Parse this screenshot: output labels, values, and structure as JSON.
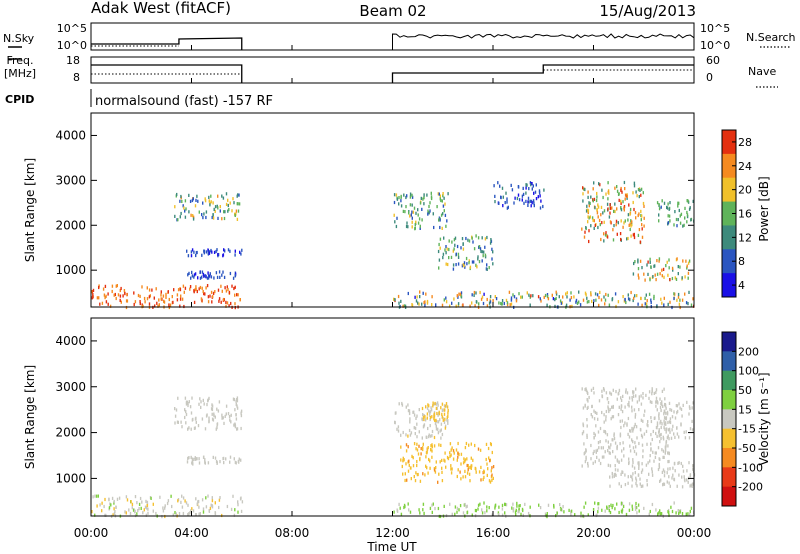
{
  "header": {
    "station": "Adak West (fitACF)",
    "beam": "Beam 02",
    "date": "15/Aug/2013"
  },
  "top_panels": {
    "nsky_label": "N.Sky",
    "nsearch_label": "N.Search",
    "freq_label_line1": "Freq.",
    "freq_label_line2": "[MHz]",
    "nave_label": "Nave",
    "cpid_label": "CPID",
    "cpid_text": "normalsound (fast) -157 RF",
    "noise_ticks_left": [
      "10^5",
      "10^0"
    ],
    "noise_ticks_right": [
      "10^5",
      "10^0"
    ],
    "freq_ticks": [
      "18",
      "8"
    ],
    "nave_ticks": [
      "60",
      "0"
    ]
  },
  "power_colorbar": {
    "label": "Power [dB]",
    "ticks": [
      "28",
      "24",
      "20",
      "16",
      "12",
      "8",
      "4"
    ],
    "colors": [
      "#1a10e6",
      "#2a55c0",
      "#3d8a7c",
      "#5fb35a",
      "#f0c02a",
      "#f58a20",
      "#e43010"
    ]
  },
  "velocity_colorbar": {
    "label": "Velocity [m s⁻¹]",
    "ticks": [
      "200",
      "100",
      "50",
      "15",
      "-15",
      "-50",
      "-100",
      "-200"
    ],
    "colors": [
      "#1a1a8c",
      "#2f5fa8",
      "#3f9a60",
      "#7fd040",
      "#c8c8c0",
      "#f5c030",
      "#f58a20",
      "#e83a18",
      "#d01010"
    ]
  },
  "x_axis": {
    "ticks": [
      "00:00",
      "04:00",
      "08:00",
      "12:00",
      "16:00",
      "20:00",
      "00:00"
    ],
    "label": "Time UT"
  },
  "chart_data": [
    {
      "type": "heatmap",
      "name": "power",
      "xlabel": "Time UT",
      "ylabel": "Slant Range [km]",
      "yticks": [
        "1000",
        "2000",
        "3000",
        "4000"
      ],
      "xlim": [
        0,
        24
      ],
      "ylim": [
        180,
        4500
      ],
      "cbar_range_db": [
        0,
        32
      ],
      "regions": [
        {
          "t": [
            3.3,
            6.0
          ],
          "r": [
            2150,
            2750
          ],
          "v": [
            6,
            24
          ]
        },
        {
          "t": [
            3.7,
            6.0
          ],
          "r": [
            1350,
            1500
          ],
          "v": [
            3,
            9
          ]
        },
        {
          "t": [
            3.8,
            5.8
          ],
          "r": [
            850,
            1000
          ],
          "v": [
            3,
            8
          ]
        },
        {
          "t": [
            0.0,
            6.0
          ],
          "r": [
            200,
            700
          ],
          "v": [
            24,
            31
          ]
        },
        {
          "t": [
            12.0,
            14.2
          ],
          "r": [
            1950,
            2750
          ],
          "v": [
            6,
            20
          ]
        },
        {
          "t": [
            13.8,
            16.0
          ],
          "r": [
            1050,
            1800
          ],
          "v": [
            6,
            20
          ]
        },
        {
          "t": [
            12.0,
            24.0
          ],
          "r": [
            200,
            550
          ],
          "v": [
            4,
            28
          ]
        },
        {
          "t": [
            19.5,
            22.0
          ],
          "r": [
            1650,
            3000
          ],
          "v": [
            10,
            30
          ]
        },
        {
          "t": [
            21.5,
            23.8
          ],
          "r": [
            800,
            1300
          ],
          "v": [
            10,
            30
          ]
        },
        {
          "t": [
            22.5,
            24.0
          ],
          "r": [
            2000,
            2600
          ],
          "v": [
            8,
            18
          ]
        },
        {
          "t": [
            16.0,
            18.0
          ],
          "r": [
            2400,
            3000
          ],
          "v": [
            3,
            10
          ]
        }
      ]
    },
    {
      "type": "heatmap",
      "name": "velocity",
      "xlabel": "Time UT",
      "ylabel": "Slant Range [km]",
      "yticks": [
        "1000",
        "2000",
        "3000",
        "4000"
      ],
      "xlim": [
        0,
        24
      ],
      "ylim": [
        180,
        4500
      ],
      "cbar_range_ms": [
        -250,
        250
      ],
      "regions": [
        {
          "t": [
            3.3,
            6.0
          ],
          "r": [
            2100,
            2800
          ],
          "v": [
            -10,
            10
          ]
        },
        {
          "t": [
            3.8,
            6.0
          ],
          "r": [
            1350,
            1500
          ],
          "v": [
            -10,
            10
          ]
        },
        {
          "t": [
            0.0,
            6.0
          ],
          "r": [
            200,
            650
          ],
          "v": [
            -40,
            40
          ]
        },
        {
          "t": [
            12.0,
            14.2
          ],
          "r": [
            1900,
            2700
          ],
          "v": [
            -30,
            10
          ]
        },
        {
          "t": [
            13.2,
            14.2
          ],
          "r": [
            2300,
            2700
          ],
          "v": [
            -80,
            -40
          ]
        },
        {
          "t": [
            12.3,
            16.0
          ],
          "r": [
            950,
            1800
          ],
          "v": [
            -90,
            -55
          ]
        },
        {
          "t": [
            12.0,
            24.0
          ],
          "r": [
            200,
            500
          ],
          "v": [
            10,
            60
          ]
        },
        {
          "t": [
            19.5,
            23.0
          ],
          "r": [
            1300,
            3000
          ],
          "v": [
            -12,
            12
          ]
        },
        {
          "t": [
            20.5,
            24.0
          ],
          "r": [
            850,
            1400
          ],
          "v": [
            -12,
            12
          ]
        },
        {
          "t": [
            22.5,
            24.0
          ],
          "r": [
            1900,
            2700
          ],
          "v": [
            -12,
            12
          ]
        }
      ]
    }
  ]
}
